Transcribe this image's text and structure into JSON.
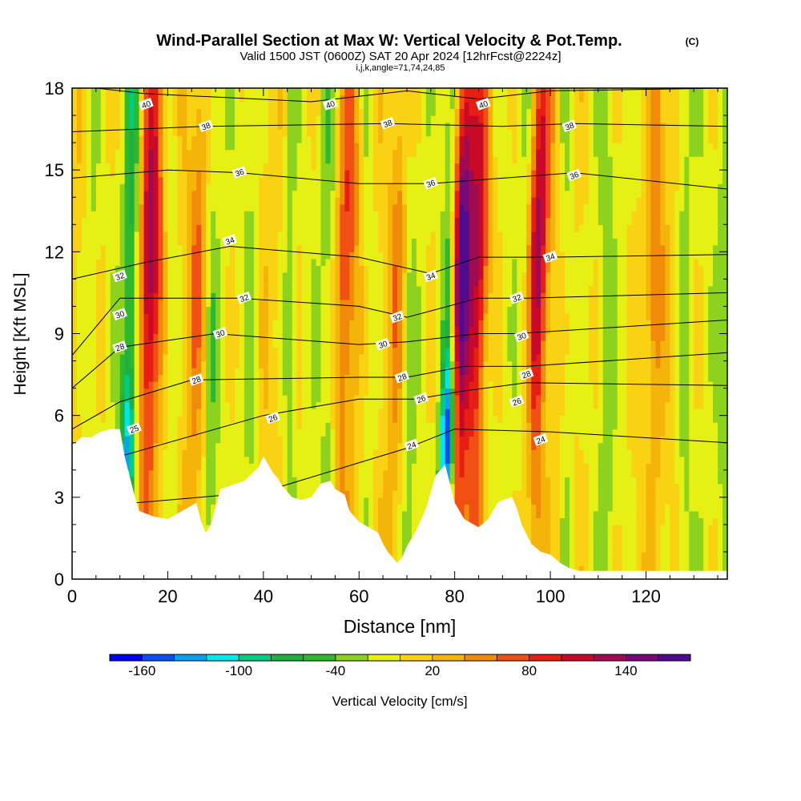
{
  "title": {
    "main": "Wind-Parallel Section at Max W: Vertical Velocity & Pot.Temp.",
    "main_tag": "(C)",
    "valid_line": "Valid 1500 JST (0600Z) SAT 20 Apr 2024 [12hrFcst@2224z]",
    "params": "i,j,k,angle=71,74,24,85"
  },
  "chart_data": {
    "type": "heatmap",
    "xlabel": "Distance [nm]",
    "ylabel": "Height [Kft MSL]",
    "xlim": [
      0,
      137
    ],
    "ylim": [
      0,
      18
    ],
    "x_ticks": [
      "0",
      "20",
      "40",
      "60",
      "80",
      "100",
      "120"
    ],
    "y_ticks": [
      "0",
      "3",
      "6",
      "9",
      "12",
      "15",
      "18"
    ],
    "x_tick_values": [
      0,
      20,
      40,
      60,
      80,
      100,
      120
    ],
    "y_tick_values": [
      0,
      3,
      6,
      9,
      12,
      15,
      18
    ],
    "colorbar": {
      "label": "Vertical Velocity [cm/s]",
      "range": [
        -180,
        180
      ],
      "step": 20,
      "tick_labels": [
        "-160",
        "-100",
        "-40",
        "20",
        "80",
        "140"
      ],
      "tick_values": [
        -160,
        -100,
        -40,
        20,
        80,
        140
      ],
      "colors": [
        "#0000f0",
        "#0a50f0",
        "#0aa0f0",
        "#00e8e8",
        "#00cc80",
        "#20b040",
        "#2eb82e",
        "#8cd21e",
        "#e6f014",
        "#fad214",
        "#f5b40a",
        "#f08c0a",
        "#f05014",
        "#e61e14",
        "#c80a28",
        "#a00a50",
        "#780a78",
        "#500a8c"
      ]
    },
    "updraft_columns": [
      {
        "x": 16,
        "peak_cm_s": 140
      },
      {
        "x": 26,
        "peak_cm_s": 60
      },
      {
        "x": 57,
        "peak_cm_s": 80
      },
      {
        "x": 68,
        "peak_cm_s": 60
      },
      {
        "x": 81,
        "peak_cm_s": 170
      },
      {
        "x": 85,
        "peak_cm_s": 120
      },
      {
        "x": 97,
        "peak_cm_s": 130
      },
      {
        "x": 121,
        "peak_cm_s": 60
      }
    ],
    "downdraft_columns": [
      {
        "x": 12,
        "peak_cm_s": -100
      },
      {
        "x": 79,
        "peak_cm_s": -170
      }
    ],
    "isentropes": [
      {
        "label": "24",
        "values": [
          [
            0,
            2.6
          ],
          [
            40,
            3.2
          ],
          [
            70,
            4.8
          ],
          [
            80,
            5.5
          ],
          [
            100,
            5.4
          ],
          [
            137,
            5.0
          ]
        ]
      },
      {
        "label": "26",
        "values": [
          [
            0,
            4.0
          ],
          [
            40,
            6.0
          ],
          [
            60,
            6.6
          ],
          [
            72,
            6.6
          ],
          [
            82,
            6.9
          ],
          [
            95,
            7.2
          ],
          [
            137,
            7.1
          ]
        ]
      },
      {
        "label": "28",
        "values": [
          [
            0,
            5.5
          ],
          [
            10,
            6.5
          ],
          [
            25,
            7.3
          ],
          [
            60,
            7.4
          ],
          [
            70,
            7.4
          ],
          [
            82,
            7.8
          ],
          [
            95,
            7.8
          ],
          [
            137,
            8.3
          ]
        ]
      },
      {
        "label": "30",
        "values": [
          [
            0,
            7.0
          ],
          [
            10,
            8.5
          ],
          [
            30,
            9.0
          ],
          [
            60,
            8.6
          ],
          [
            70,
            8.7
          ],
          [
            85,
            9.0
          ],
          [
            93,
            9.0
          ],
          [
            137,
            9.5
          ]
        ]
      },
      {
        "label": "32",
        "values": [
          [
            0,
            8.2
          ],
          [
            10,
            10.3
          ],
          [
            35,
            10.3
          ],
          [
            60,
            10.0
          ],
          [
            70,
            9.6
          ],
          [
            85,
            10.3
          ],
          [
            95,
            10.3
          ],
          [
            137,
            10.5
          ]
        ]
      },
      {
        "label": "34",
        "values": [
          [
            0,
            11.0
          ],
          [
            15,
            11.6
          ],
          [
            33,
            12.2
          ],
          [
            60,
            11.8
          ],
          [
            75,
            11.2
          ],
          [
            85,
            11.8
          ],
          [
            100,
            11.8
          ],
          [
            137,
            11.9
          ]
        ]
      },
      {
        "label": "36",
        "values": [
          [
            0,
            14.7
          ],
          [
            20,
            15.0
          ],
          [
            35,
            14.9
          ],
          [
            60,
            14.5
          ],
          [
            75,
            14.5
          ],
          [
            90,
            14.7
          ],
          [
            105,
            14.9
          ],
          [
            137,
            14.3
          ]
        ]
      },
      {
        "label": "38",
        "values": [
          [
            0,
            16.4
          ],
          [
            28,
            16.6
          ],
          [
            66,
            16.7
          ],
          [
            90,
            16.6
          ],
          [
            105,
            16.7
          ],
          [
            137,
            16.6
          ]
        ]
      },
      {
        "label": "40",
        "values": [
          [
            5,
            18.0
          ],
          [
            15,
            17.8
          ],
          [
            50,
            17.5
          ],
          [
            70,
            17.9
          ],
          [
            85,
            17.6
          ],
          [
            100,
            17.9
          ],
          [
            137,
            18.0
          ]
        ]
      }
    ],
    "terrain": [
      [
        0,
        4.9
      ],
      [
        2,
        5.2
      ],
      [
        4,
        5.2
      ],
      [
        6,
        5.4
      ],
      [
        8,
        5.5
      ],
      [
        10,
        5.5
      ],
      [
        11,
        4.5
      ],
      [
        12,
        3.8
      ],
      [
        13,
        3.1
      ],
      [
        14,
        2.5
      ],
      [
        17,
        2.3
      ],
      [
        20,
        2.2
      ],
      [
        22,
        2.4
      ],
      [
        24,
        2.6
      ],
      [
        26,
        2.8
      ],
      [
        27,
        2.1
      ],
      [
        28,
        1.7
      ],
      [
        29,
        2.0
      ],
      [
        31,
        3.3
      ],
      [
        36,
        3.6
      ],
      [
        39,
        4.1
      ],
      [
        40,
        4.5
      ],
      [
        41,
        4.2
      ],
      [
        42,
        3.9
      ],
      [
        43,
        3.7
      ],
      [
        44,
        3.4
      ],
      [
        46,
        3.0
      ],
      [
        48,
        2.9
      ],
      [
        50,
        3.0
      ],
      [
        52,
        3.5
      ],
      [
        54,
        3.6
      ],
      [
        55,
        3.3
      ],
      [
        57,
        3.1
      ],
      [
        58,
        2.5
      ],
      [
        60,
        2.1
      ],
      [
        62,
        1.9
      ],
      [
        64,
        1.7
      ],
      [
        65,
        1.3
      ],
      [
        66,
        1.0
      ],
      [
        67,
        0.8
      ],
      [
        68,
        0.6
      ],
      [
        69,
        0.8
      ],
      [
        70,
        1.2
      ],
      [
        72,
        1.8
      ],
      [
        74,
        2.6
      ],
      [
        76,
        3.8
      ],
      [
        78,
        4.2
      ],
      [
        79,
        3.5
      ],
      [
        80,
        2.8
      ],
      [
        82,
        2.2
      ],
      [
        85,
        1.9
      ],
      [
        87,
        2.2
      ],
      [
        89,
        2.8
      ],
      [
        90,
        2.9
      ],
      [
        92,
        3.0
      ],
      [
        93,
        2.6
      ],
      [
        94,
        2.0
      ],
      [
        96,
        1.3
      ],
      [
        98,
        1.0
      ],
      [
        100,
        0.9
      ],
      [
        102,
        0.6
      ],
      [
        104,
        0.4
      ],
      [
        106,
        0.3
      ],
      [
        137,
        0.3
      ]
    ],
    "background_cm_s": 0
  },
  "contour_labels": [
    {
      "text": "40",
      "x": 15.5,
      "y": 17.4
    },
    {
      "text": "40",
      "x": 54,
      "y": 17.4
    },
    {
      "text": "40",
      "x": 86,
      "y": 17.4
    },
    {
      "text": "38",
      "x": 28,
      "y": 16.6
    },
    {
      "text": "38",
      "x": 66,
      "y": 16.7
    },
    {
      "text": "38",
      "x": 104,
      "y": 16.6
    },
    {
      "text": "36",
      "x": 35,
      "y": 14.9
    },
    {
      "text": "36",
      "x": 75,
      "y": 14.5
    },
    {
      "text": "36",
      "x": 105,
      "y": 14.8
    },
    {
      "text": "34",
      "x": 33,
      "y": 12.4
    },
    {
      "text": "34",
      "x": 75,
      "y": 11.1
    },
    {
      "text": "34",
      "x": 100,
      "y": 11.8
    },
    {
      "text": "32",
      "x": 10,
      "y": 11.1
    },
    {
      "text": "32",
      "x": 36,
      "y": 10.3
    },
    {
      "text": "32",
      "x": 68,
      "y": 9.6
    },
    {
      "text": "32",
      "x": 93,
      "y": 10.3
    },
    {
      "text": "30",
      "x": 10,
      "y": 9.7
    },
    {
      "text": "30",
      "x": 31,
      "y": 9.0
    },
    {
      "text": "30",
      "x": 65,
      "y": 8.6
    },
    {
      "text": "30",
      "x": 94,
      "y": 8.9
    },
    {
      "text": "28",
      "x": 10,
      "y": 8.5
    },
    {
      "text": "28",
      "x": 26,
      "y": 7.3
    },
    {
      "text": "28",
      "x": 69,
      "y": 7.4
    },
    {
      "text": "28",
      "x": 95,
      "y": 7.5
    },
    {
      "text": "26",
      "x": 42,
      "y": 5.9
    },
    {
      "text": "26",
      "x": 73,
      "y": 6.6
    },
    {
      "text": "26",
      "x": 93,
      "y": 6.5
    },
    {
      "text": "25",
      "x": 13,
      "y": 5.5
    },
    {
      "text": "24",
      "x": 71,
      "y": 4.9
    },
    {
      "text": "24",
      "x": 98,
      "y": 5.1
    }
  ]
}
